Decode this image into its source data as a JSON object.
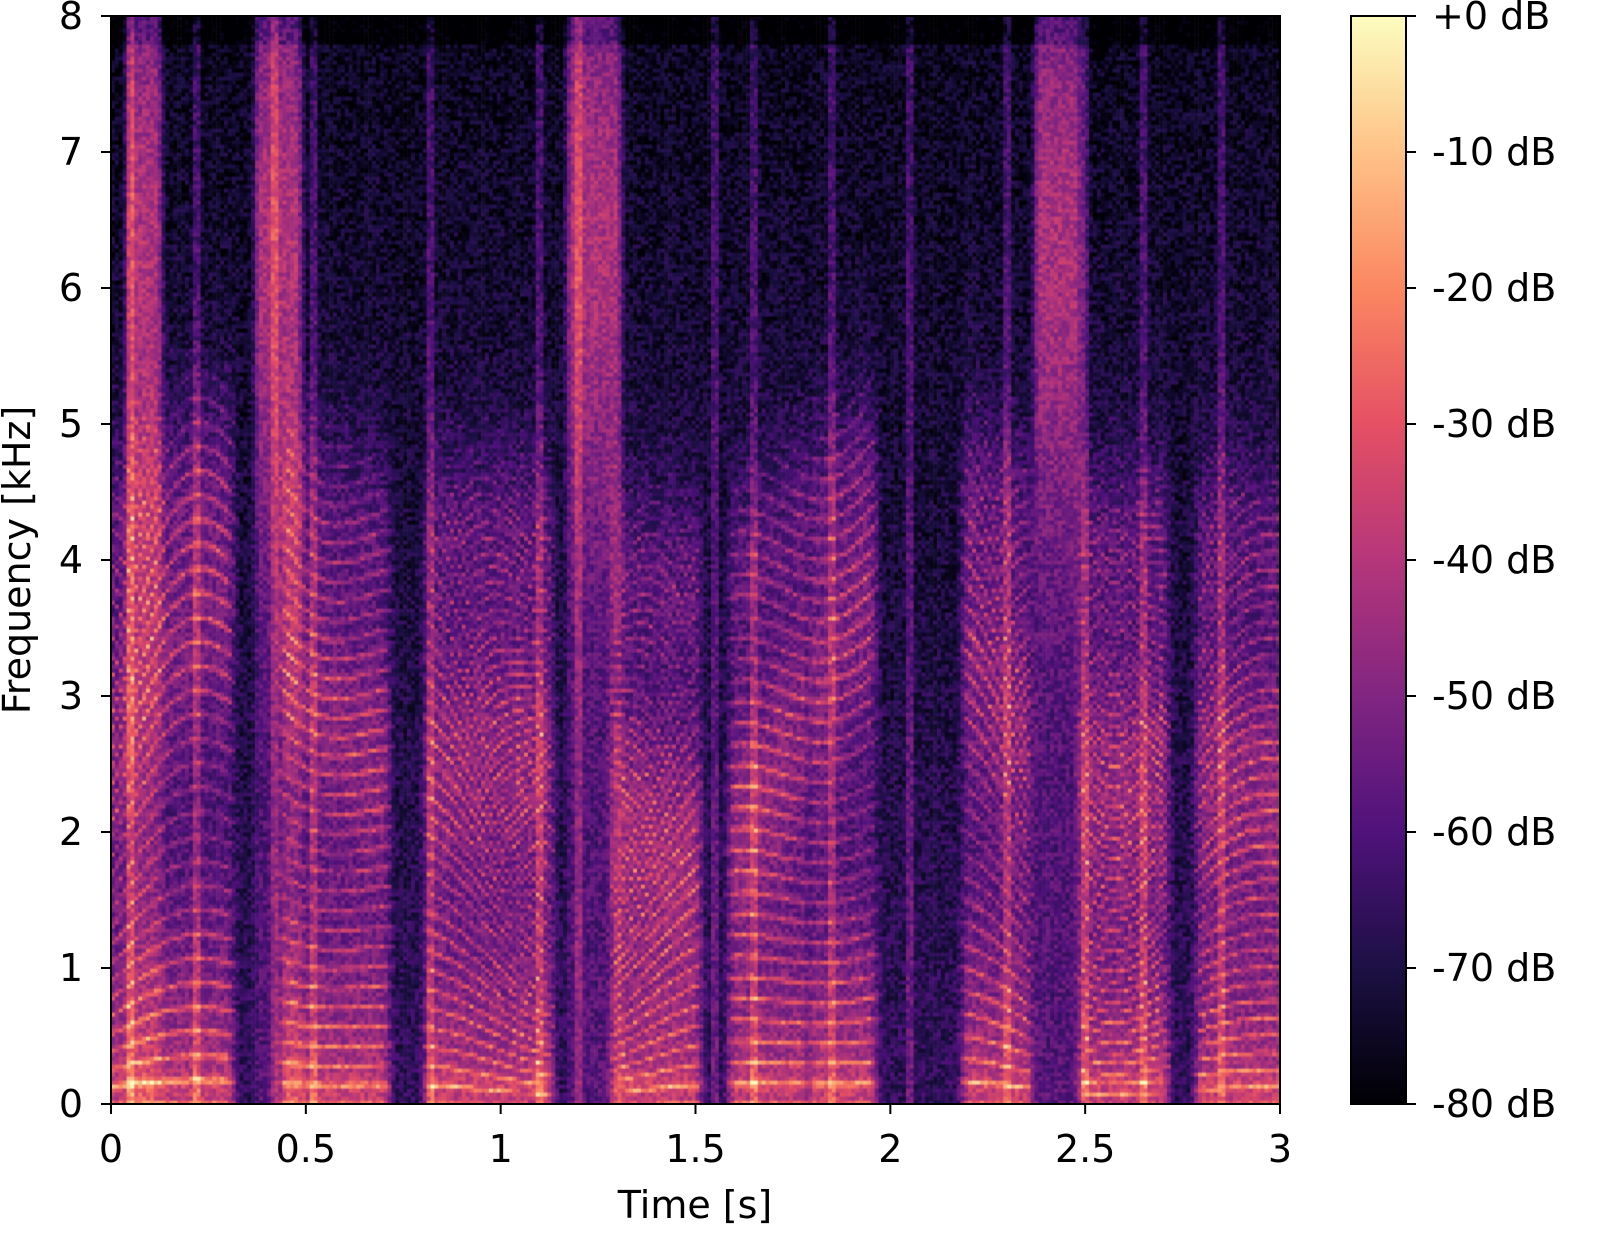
{
  "chart_data": [
    {
      "type": "heatmap",
      "subtype": "spectrogram",
      "title": "",
      "xlabel": "Time [s]",
      "ylabel": "Frequency [kHz]",
      "xlim": [
        0,
        3
      ],
      "ylim": [
        0,
        8
      ],
      "xticks": [
        0,
        0.5,
        1,
        1.5,
        2,
        2.5,
        3
      ],
      "xtick_labels": [
        "0",
        "0.5",
        "1",
        "1.5",
        "2",
        "2.5",
        "3"
      ],
      "yticks": [
        0,
        1,
        2,
        3,
        4,
        5,
        6,
        7,
        8
      ],
      "ytick_labels": [
        "0",
        "1",
        "2",
        "3",
        "4",
        "5",
        "6",
        "7",
        "8"
      ],
      "grid": false,
      "colormap": "magma",
      "value_range_db": [
        -80,
        0
      ],
      "approx_onsets_s": [
        0.05,
        0.22,
        0.42,
        0.52,
        0.82,
        1.1,
        1.2,
        1.55,
        1.65,
        1.85,
        2.05,
        2.3,
        2.5,
        2.65,
        2.85
      ],
      "voiced_segments_s": [
        [
          0.0,
          0.2
        ],
        [
          0.2,
          0.3
        ],
        [
          0.45,
          0.7
        ],
        [
          0.82,
          1.12
        ],
        [
          1.3,
          1.5
        ],
        [
          1.6,
          1.78
        ],
        [
          1.8,
          1.95
        ],
        [
          2.2,
          2.35
        ],
        [
          2.5,
          2.7
        ],
        [
          2.8,
          3.0
        ]
      ],
      "fricative_segments_s": [
        [
          0.05,
          0.12
        ],
        [
          0.38,
          0.48
        ],
        [
          1.18,
          1.3
        ],
        [
          2.38,
          2.48
        ]
      ]
    },
    {
      "type": "colorbar",
      "ticks": [
        0,
        -10,
        -20,
        -30,
        -40,
        -50,
        -60,
        -70,
        -80
      ],
      "tick_labels": [
        "+0 dB",
        "-10 dB",
        "-20 dB",
        "-30 dB",
        "-40 dB",
        "-50 dB",
        "-60 dB",
        "-70 dB",
        "-80 dB"
      ],
      "range": [
        -80,
        0
      ],
      "colormap": "magma"
    }
  ],
  "colors": {
    "magma_stops": [
      "#000004",
      "#1c1044",
      "#4f127b",
      "#812581",
      "#b5367a",
      "#e55064",
      "#fb8761",
      "#fec287",
      "#fcfdbf"
    ]
  }
}
